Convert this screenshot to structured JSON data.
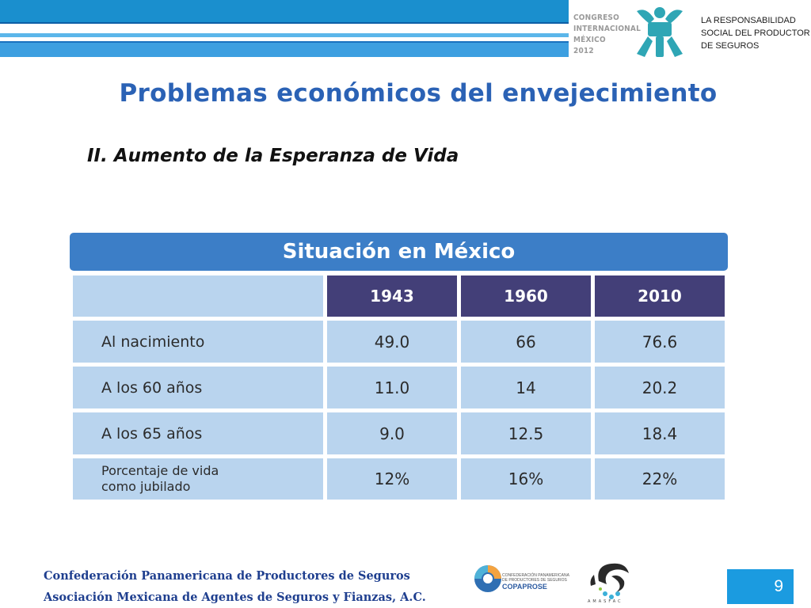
{
  "header": {
    "congreso_lines": [
      "CONGRESO",
      "INTERNACIONAL",
      "MÉXICO 2012"
    ],
    "tagline_lines": [
      "LA RESPONSABILIDAD",
      "SOCIAL DEL PRODUCTOR",
      "DE SEGUROS"
    ],
    "logo_icon": "ssp-logo-icon",
    "colors": {
      "band": "#1a8fce",
      "logo": "#2fa6b5"
    }
  },
  "slide": {
    "title": "Problemas económicos del envejecimiento",
    "subtitle": "II. Aumento de la Esperanza de Vida"
  },
  "table": {
    "title": "Situación en México",
    "years": [
      "1943",
      "1960",
      "2010"
    ],
    "rows": [
      {
        "label": "Al nacimiento",
        "values": [
          "49.0",
          "66",
          "76.6"
        ]
      },
      {
        "label": "A los 60 años",
        "values": [
          "11.0",
          "14",
          "20.2"
        ]
      },
      {
        "label": "A los 65 años",
        "values": [
          "9.0",
          "12.5",
          "18.4"
        ]
      },
      {
        "label_lines": [
          "Porcentaje de vida",
          "como jubilado"
        ],
        "values": [
          "12%",
          "16%",
          "22%"
        ]
      }
    ],
    "colors": {
      "header": "#3c7ec7",
      "year_cells": "#433f78",
      "body_cells": "#b9d4ee"
    }
  },
  "footer": {
    "lines": [
      "Confederación Panamericana de Productores de Seguros",
      "Asociación Mexicana de Agentes de Seguros y Fianzas, A.C."
    ],
    "copaprose_small": [
      "CONFEDERACIÓN PANAMERICANA",
      "DE PRODUCTORES DE SEGUROS"
    ],
    "copaprose_name": "COPAPROSE",
    "amasfac_name": "AMASFAC",
    "page_number": "9"
  }
}
